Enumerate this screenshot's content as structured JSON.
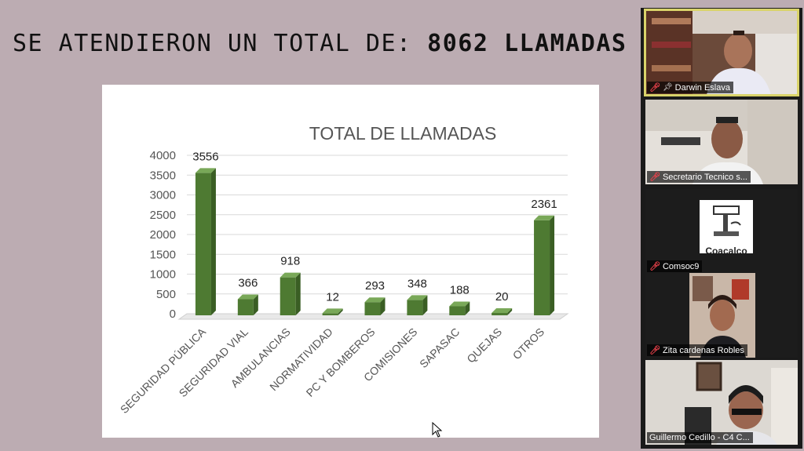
{
  "slide": {
    "heading_prefix": "SE ATENDIERON UN TOTAL DE: ",
    "heading_value": "8062 LLAMADAS"
  },
  "chart_data": {
    "type": "bar",
    "title": "TOTAL DE LLAMADAS",
    "categories": [
      "SEGURIDAD PÚBLICA",
      "SEGURIDAD VIAL",
      "AMBULANCIAS",
      "NORMATIVIDAD",
      "PC Y BOMBEROS",
      "COMISIONES",
      "SAPASAC",
      "QUEJAS",
      "OTROS"
    ],
    "values": [
      3556,
      366,
      918,
      12,
      293,
      348,
      188,
      20,
      2361
    ],
    "data_labels": [
      "3556",
      "366",
      "918",
      "12",
      "293",
      "348",
      "188",
      "20",
      "2361"
    ],
    "ylim": [
      0,
      4000
    ],
    "yticks": [
      0,
      500,
      1000,
      1500,
      2000,
      2500,
      3000,
      3500,
      4000
    ],
    "ytick_labels": [
      "0",
      "500",
      "1000",
      "1500",
      "2000",
      "2500",
      "3000",
      "3500",
      "4000"
    ],
    "grid": true,
    "bar_color": "#4e7a32"
  },
  "participants": [
    {
      "name": "Darwin Eslava",
      "muted": true,
      "pinned": true,
      "active": true
    },
    {
      "name": "Secretario Tecnico s...",
      "muted": true
    },
    {
      "name": "Comsoc9",
      "muted": true,
      "avatar_text": "Coacalco"
    },
    {
      "name": "Zita cardenas Robles",
      "muted": true
    },
    {
      "name": "Guillermo Cedillo - C4 C...",
      "muted": true
    }
  ],
  "colors": {
    "highlight": "#d9d36a",
    "mic_off": "#e8414a"
  }
}
